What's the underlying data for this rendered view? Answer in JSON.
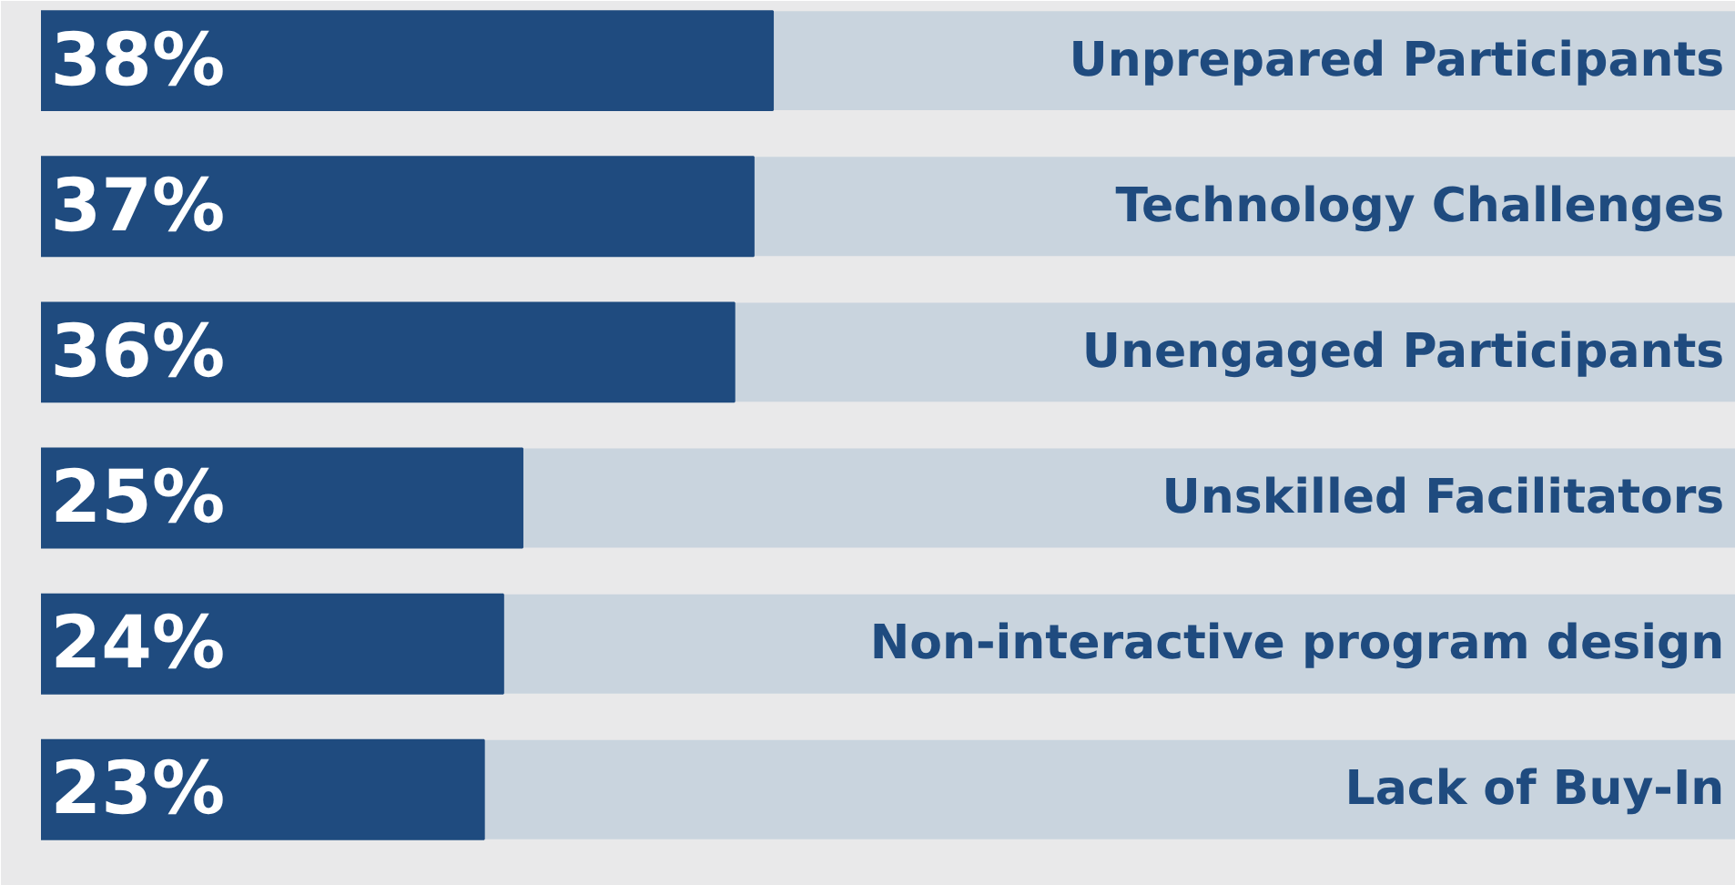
{
  "chart_data": {
    "type": "bar",
    "orientation": "horizontal",
    "categories": [
      "Unprepared Participants",
      "Technology Challenges",
      "Unengaged Participants",
      "Unskilled Facilitators",
      "Non-interactive program design",
      "Lack of Buy-In"
    ],
    "values": [
      38,
      37,
      36,
      25,
      24,
      23
    ],
    "value_labels": [
      "38%",
      "37%",
      "36%",
      "25%",
      "24%",
      "23%"
    ],
    "color": "#1f4b7f",
    "xlim": [
      0,
      88
    ],
    "tick_labels": false
  }
}
